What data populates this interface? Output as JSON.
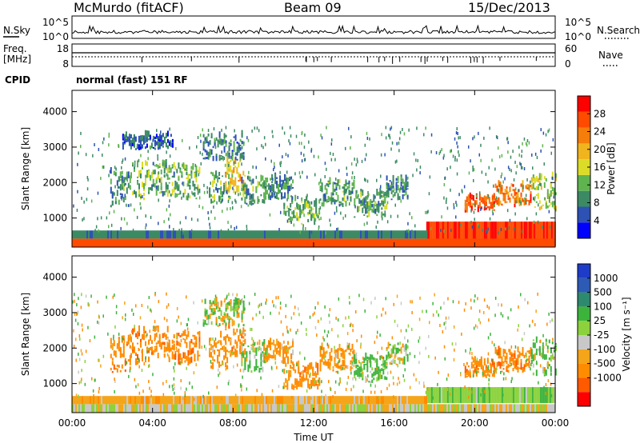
{
  "header": {
    "title": "McMurdo (fitACF)",
    "beam": "Beam 09",
    "date": "15/Dec/2013"
  },
  "top_panels": {
    "nsky_label": "N.Sky",
    "nsearch_label": "N.Search",
    "noise_ticks": [
      "10^5",
      "10^0"
    ],
    "freq_label_line1": "Freq.",
    "freq_label_line2": "[MHz]",
    "freq_ticks": [
      "18",
      "8"
    ],
    "nave_label": "Nave",
    "nave_ticks": [
      "60",
      "0"
    ],
    "cpid_label": "CPID",
    "cpid_text": "normal (fast) 151 RF"
  },
  "colors": {
    "power": [
      "#0000ff",
      "#2d52b4",
      "#3c8a64",
      "#5fb44f",
      "#dcdc28",
      "#f0b41e",
      "#f57d0a",
      "#ff4b00",
      "#ff0000"
    ],
    "velocity": [
      "#ff0000",
      "#ff5a00",
      "#ff8c00",
      "#f5a519",
      "#c8c8c8",
      "#8cd23c",
      "#3cb43c",
      "#2d8a6e",
      "#2d5ab4",
      "#1e3cc8"
    ],
    "ground_scatter": "#c0c0c0"
  },
  "chart_data": [
    {
      "type": "heatmap",
      "name": "power",
      "ylabel": "Slant Range [km]",
      "ylim": [
        180,
        4600
      ],
      "yticks": [
        "1000",
        "2000",
        "3000",
        "4000"
      ],
      "colorbar_label": "Power [dB]",
      "colorbar_ticks": [
        "4",
        "8",
        "12",
        "16",
        "20",
        "24",
        "28"
      ],
      "colorbar_range": [
        0,
        32
      ],
      "regions": [
        {
          "t": [
            1.9,
            2.9
          ],
          "r": [
            1300,
            2300
          ],
          "v": 10
        },
        {
          "t": [
            2.9,
            4.0
          ],
          "r": [
            1500,
            2500
          ],
          "v": 13
        },
        {
          "t": [
            4.0,
            5.1
          ],
          "r": [
            1600,
            2500
          ],
          "v": 11
        },
        {
          "t": [
            5.1,
            6.3
          ],
          "r": [
            1500,
            2400
          ],
          "v": 12
        },
        {
          "t": [
            6.8,
            7.8
          ],
          "r": [
            1400,
            2300
          ],
          "v": 11
        },
        {
          "t": [
            7.6,
            8.6
          ],
          "r": [
            1700,
            2600
          ],
          "v": 18
        },
        {
          "t": [
            8.4,
            9.6
          ],
          "r": [
            1300,
            2100
          ],
          "v": 10
        },
        {
          "t": [
            9.5,
            11.0
          ],
          "r": [
            1500,
            2100
          ],
          "v": 9
        },
        {
          "t": [
            10.5,
            12.3
          ],
          "r": [
            800,
            1500
          ],
          "v": 12
        },
        {
          "t": [
            12.3,
            14.0
          ],
          "r": [
            1300,
            2000
          ],
          "v": 10
        },
        {
          "t": [
            14.0,
            15.6
          ],
          "r": [
            1000,
            1700
          ],
          "v": 11
        },
        {
          "t": [
            15.6,
            16.7
          ],
          "r": [
            1500,
            2100
          ],
          "v": 9
        },
        {
          "t": [
            6.5,
            8.5
          ],
          "r": [
            2600,
            3300
          ],
          "v": 8
        },
        {
          "t": [
            2.5,
            5.0
          ],
          "r": [
            2900,
            3300
          ],
          "v": 6
        },
        {
          "t": [
            19.5,
            21.0
          ],
          "r": [
            1150,
            1600
          ],
          "v": 26
        },
        {
          "t": [
            21.0,
            22.8
          ],
          "r": [
            1300,
            1900
          ],
          "v": 24
        },
        {
          "t": [
            22.8,
            24.0
          ],
          "r": [
            1200,
            2200
          ],
          "v": 16
        },
        {
          "t": [
            17.6,
            24.0
          ],
          "r": [
            200,
            900
          ],
          "v": 28
        },
        {
          "t": [
            0.0,
            24.0
          ],
          "r": [
            180,
            420
          ],
          "v": 27
        },
        {
          "t": [
            0.0,
            17.6
          ],
          "r": [
            420,
            650
          ],
          "v": 8
        }
      ]
    },
    {
      "type": "heatmap",
      "name": "velocity",
      "ylabel": "Slant Range [km]",
      "xlabel": "Time UT",
      "xticks": [
        "00:00",
        "04:00",
        "08:00",
        "12:00",
        "16:00",
        "20:00",
        "00:00"
      ],
      "ylim": [
        180,
        4600
      ],
      "yticks": [
        "1000",
        "2000",
        "3000",
        "4000"
      ],
      "colorbar_label": "Velocity [m s⁻¹]",
      "colorbar_ticks": [
        "1000",
        "500",
        "100",
        "25",
        "-25",
        "-100",
        "-500",
        "-1000"
      ],
      "regions": [
        {
          "t": [
            1.9,
            2.9
          ],
          "r": [
            1300,
            2300
          ],
          "v": -300
        },
        {
          "t": [
            2.9,
            4.0
          ],
          "r": [
            1500,
            2500
          ],
          "v": -350
        },
        {
          "t": [
            4.0,
            5.1
          ],
          "r": [
            1600,
            2500
          ],
          "v": -300
        },
        {
          "t": [
            5.1,
            6.3
          ],
          "r": [
            1500,
            2400
          ],
          "v": -350
        },
        {
          "t": [
            6.8,
            7.8
          ],
          "r": [
            1400,
            2300
          ],
          "v": -250
        },
        {
          "t": [
            7.6,
            8.6
          ],
          "r": [
            1700,
            2600
          ],
          "v": -300
        },
        {
          "t": [
            8.4,
            9.6
          ],
          "r": [
            1300,
            2100
          ],
          "v": 150
        },
        {
          "t": [
            9.5,
            11.0
          ],
          "r": [
            1500,
            2100
          ],
          "v": -200
        },
        {
          "t": [
            10.5,
            12.3
          ],
          "r": [
            800,
            1500
          ],
          "v": -300
        },
        {
          "t": [
            12.3,
            14.0
          ],
          "r": [
            1300,
            2000
          ],
          "v": -250
        },
        {
          "t": [
            14.0,
            15.6
          ],
          "r": [
            1000,
            1700
          ],
          "v": 200
        },
        {
          "t": [
            15.6,
            16.7
          ],
          "r": [
            1500,
            2100
          ],
          "v": 120
        },
        {
          "t": [
            6.5,
            8.5
          ],
          "r": [
            2600,
            3300
          ],
          "v": 60
        },
        {
          "t": [
            19.5,
            21.0
          ],
          "r": [
            1150,
            1600
          ],
          "v": -300
        },
        {
          "t": [
            21.0,
            22.8
          ],
          "r": [
            1300,
            1900
          ],
          "v": -350
        },
        {
          "t": [
            22.8,
            24.0
          ],
          "r": [
            1200,
            2200
          ],
          "v": 150
        },
        {
          "t": [
            17.6,
            24.0
          ],
          "r": [
            450,
            900
          ],
          "v": 80
        },
        {
          "t": [
            0.0,
            24.0
          ],
          "r": [
            180,
            420
          ],
          "v": 0
        },
        {
          "t": [
            0.0,
            17.6
          ],
          "r": [
            420,
            650
          ],
          "v": -60
        }
      ]
    }
  ]
}
